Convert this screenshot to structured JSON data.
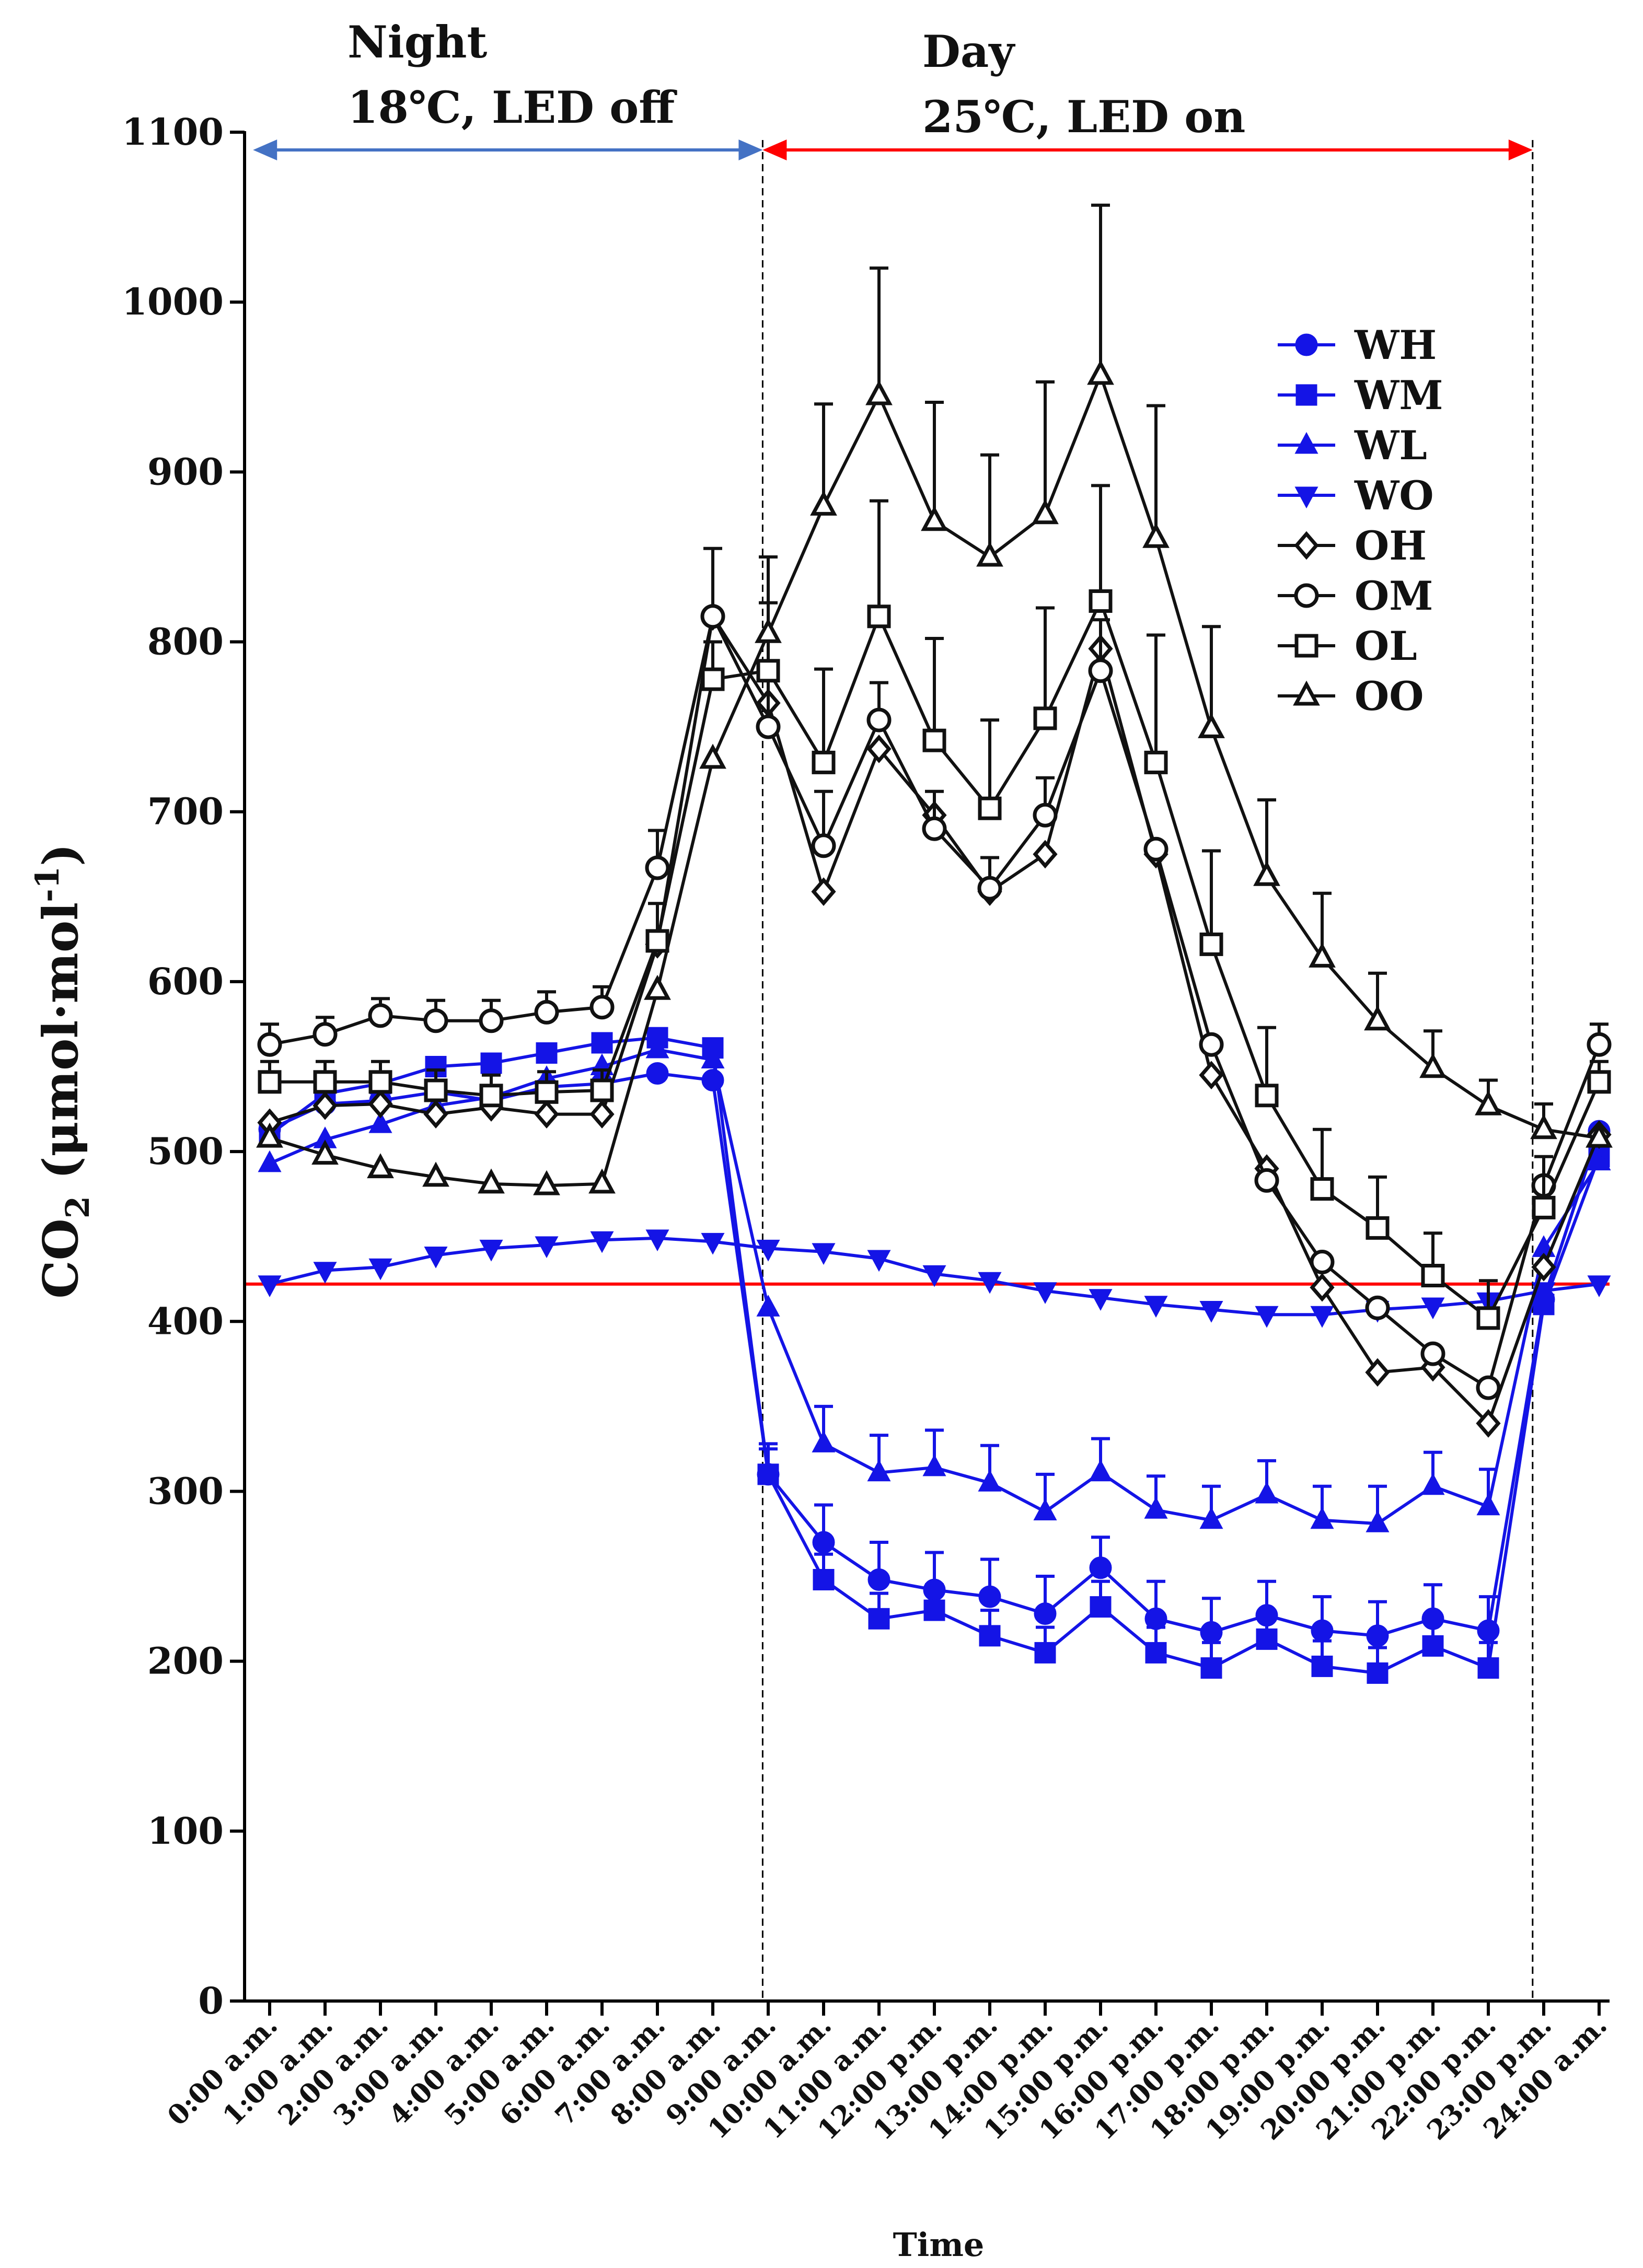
{
  "chart_data": {
    "type": "line",
    "xlabel": "Time",
    "ylabel_main": "CO",
    "ylabel_sub": "2",
    "ylabel_unit_pre": " (μmol·mol",
    "ylabel_unit_sup": "-1",
    "ylabel_unit_post": ")",
    "ylim": [
      0,
      1100
    ],
    "yticks": [
      0,
      100,
      200,
      300,
      400,
      500,
      600,
      700,
      800,
      900,
      1000,
      1100
    ],
    "categories": [
      "0:00 a.m.",
      "1:00 a.m.",
      "2:00 a.m.",
      "3:00 a.m.",
      "4:00 a.m.",
      "5:00 a.m.",
      "6:00 a.m.",
      "7:00 a.m.",
      "8:00 a.m.",
      "9:00 a.m.",
      "10:00 a.m.",
      "11:00 a.m.",
      "12:00 p.m.",
      "13:00 p.m.",
      "14:00 p.m.",
      "15:00 p.m.",
      "16:00 p.m.",
      "17:00 p.m.",
      "18:00 p.m.",
      "19:00 p.m.",
      "20:00 p.m.",
      "21:00 p.m.",
      "22:00 p.m.",
      "23:00 p.m.",
      "24:00 a.m."
    ],
    "annotations": {
      "night_title": "Night",
      "night_detail": "18℃, LED  off",
      "day_title": "Day",
      "day_detail": "25℃, LED on",
      "night_range": [
        -0.3,
        8.9
      ],
      "day_range": [
        8.9,
        22.8
      ],
      "night_arrow_color": "#4472c4",
      "day_arrow_color": "#ff0000",
      "divider_indices": [
        8.9,
        22.8
      ]
    },
    "reference_line": {
      "value": 422,
      "color": "#ff0000"
    },
    "series": [
      {
        "name": "WH",
        "color": "#1414e6",
        "marker": "circle",
        "filled": true,
        "values": [
          513,
          528,
          530,
          535,
          530,
          538,
          540,
          546,
          542,
          310,
          270,
          248,
          242,
          238,
          228,
          255,
          225,
          217,
          227,
          218,
          215,
          225,
          218,
          413,
          512
        ],
        "errors": [
          0,
          0,
          0,
          0,
          0,
          0,
          0,
          0,
          0,
          18,
          22,
          22,
          22,
          22,
          22,
          18,
          22,
          20,
          20,
          20,
          20,
          20,
          20,
          0,
          0
        ]
      },
      {
        "name": "WM",
        "color": "#1414e6",
        "marker": "square",
        "filled": true,
        "values": [
          510,
          534,
          540,
          550,
          552,
          558,
          564,
          567,
          561,
          310,
          248,
          225,
          230,
          215,
          205,
          232,
          205,
          196,
          213,
          197,
          193,
          209,
          196,
          410,
          497
        ],
        "errors": [
          0,
          0,
          0,
          0,
          0,
          0,
          0,
          0,
          0,
          15,
          15,
          15,
          15,
          15,
          15,
          15,
          15,
          15,
          15,
          15,
          15,
          15,
          15,
          0,
          0
        ]
      },
      {
        "name": "WL",
        "color": "#1414e6",
        "marker": "triangle-up",
        "filled": true,
        "values": [
          493,
          507,
          516,
          527,
          532,
          543,
          550,
          560,
          554,
          408,
          328,
          311,
          314,
          305,
          288,
          311,
          289,
          283,
          298,
          283,
          281,
          303,
          291,
          443,
          494
        ],
        "errors": [
          0,
          0,
          0,
          0,
          0,
          0,
          0,
          0,
          0,
          0,
          22,
          22,
          22,
          22,
          22,
          20,
          20,
          20,
          20,
          20,
          22,
          20,
          22,
          0,
          0
        ]
      },
      {
        "name": "WO",
        "color": "#1414e6",
        "marker": "triangle-down",
        "filled": true,
        "values": [
          422,
          430,
          432,
          439,
          443,
          445,
          448,
          449,
          447,
          443,
          441,
          437,
          428,
          424,
          418,
          414,
          410,
          407,
          404,
          404,
          407,
          409,
          412,
          418,
          422
        ],
        "errors": [
          0,
          0,
          0,
          0,
          0,
          0,
          0,
          0,
          0,
          0,
          0,
          0,
          0,
          0,
          0,
          0,
          0,
          0,
          0,
          0,
          0,
          0,
          0,
          0,
          0
        ]
      },
      {
        "name": "OH",
        "color": "#111111",
        "marker": "diamond",
        "filled": false,
        "values": [
          517,
          527,
          528,
          522,
          526,
          522,
          522,
          622,
          815,
          764,
          653,
          737,
          698,
          653,
          675,
          796,
          675,
          545,
          490,
          420,
          370,
          373,
          340,
          432,
          510
        ],
        "errors": [
          0,
          0,
          0,
          0,
          0,
          0,
          0,
          0,
          0,
          0,
          0,
          0,
          0,
          0,
          0,
          0,
          0,
          0,
          0,
          0,
          0,
          0,
          0,
          0,
          0
        ]
      },
      {
        "name": "OM",
        "color": "#111111",
        "marker": "circle",
        "filled": false,
        "values": [
          563,
          569,
          580,
          577,
          577,
          582,
          585,
          667,
          815,
          750,
          680,
          754,
          690,
          655,
          698,
          783,
          678,
          563,
          483,
          435,
          408,
          381,
          361,
          480,
          563
        ],
        "errors": [
          12,
          10,
          10,
          12,
          12,
          12,
          12,
          22,
          40,
          30,
          32,
          22,
          22,
          18,
          22,
          30,
          0,
          0,
          0,
          0,
          0,
          0,
          0,
          0,
          12
        ]
      },
      {
        "name": "OL",
        "color": "#111111",
        "marker": "square",
        "filled": false,
        "values": [
          541,
          541,
          541,
          536,
          533,
          535,
          536,
          624,
          778,
          783,
          729,
          815,
          742,
          702,
          755,
          824,
          729,
          622,
          533,
          478,
          455,
          427,
          402,
          467,
          541
        ],
        "errors": [
          12,
          12,
          12,
          12,
          12,
          12,
          12,
          22,
          22,
          40,
          55,
          68,
          60,
          52,
          65,
          68,
          75,
          55,
          40,
          35,
          30,
          25,
          22,
          30,
          12
        ]
      },
      {
        "name": "OO",
        "color": "#111111",
        "marker": "triangle-up",
        "filled": false,
        "values": [
          508,
          498,
          490,
          485,
          481,
          480,
          481,
          595,
          731,
          805,
          880,
          945,
          871,
          850,
          875,
          957,
          861,
          749,
          662,
          614,
          577,
          549,
          527,
          513,
          508
        ],
        "errors": [
          0,
          0,
          0,
          0,
          0,
          0,
          0,
          0,
          0,
          45,
          60,
          75,
          70,
          60,
          78,
          100,
          78,
          60,
          45,
          38,
          28,
          22,
          15,
          15,
          0
        ]
      }
    ]
  }
}
